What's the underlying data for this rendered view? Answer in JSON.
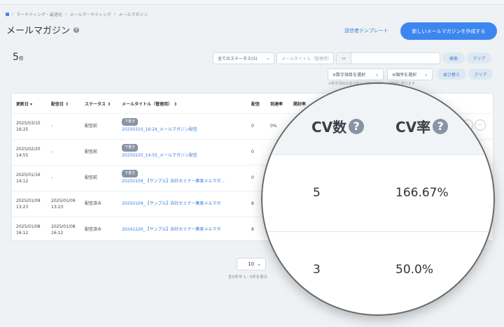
{
  "breadcrumb": [
    "マーケティング・最適化",
    "メールマーケティング",
    "メールマガジン"
  ],
  "page_title": "メールマガジン",
  "header": {
    "sender_template_link": "送信者テンプレート",
    "create_button": "新しいメールマガジンを作成する"
  },
  "count": {
    "value": "5",
    "unit": "件"
  },
  "filters": {
    "status_select": "全てのステータス(5)",
    "title_placeholder": "メールタイトル（管理用）",
    "date_value": "",
    "search_button": "検索",
    "clear_button": "クリア",
    "numeric_select": "※数字項目を選択",
    "order_select": "※順序を選択",
    "sort_button": "並び替え",
    "sort_clear_button": "クリア",
    "note": "※数字項目の並び替えは表示されている範囲に限ります"
  },
  "table": {
    "headers": [
      "更新日",
      "配信日",
      "ステータス",
      "メールタイトル（管理用）",
      "配信",
      "到達率",
      "開封率"
    ],
    "rows": [
      {
        "updated": "2025/03/10\n16:25",
        "sent": "-",
        "status": "配信前",
        "badge": "下書き",
        "title": "20250310_16:24_メールマガジン配信",
        "delivered": "0",
        "reach": "0%"
      },
      {
        "updated": "2025/02/20\n14:55",
        "sent": "-",
        "status": "配信前",
        "badge": "下書き",
        "title": "20250220_14:55_メールマガジン配信",
        "delivered": "0",
        "reach": ""
      },
      {
        "updated": "2025/01/16\n14:12",
        "sent": "-",
        "status": "配信前",
        "badge": "下書き",
        "title": "20250109_【サンプル】自社セミナー集客メルマガ...",
        "delivered": "0",
        "reach": ""
      },
      {
        "updated": "2025/01/09\n13:23",
        "sent": "2025/01/09\n13:23",
        "status": "配信済み",
        "badge": "",
        "title": "20250109_【サンプル】自社セミナー集客メルマガ",
        "delivered": "8",
        "reach": ""
      },
      {
        "updated": "2025/01/08\n16:12",
        "sent": "2025/01/08\n16:12",
        "status": "配信済み",
        "badge": "",
        "title": "20241226_【サンプル】自社セミナー集客メルマガ",
        "delivered": "8",
        "reach": ""
      }
    ]
  },
  "pagination": {
    "per_page": "10",
    "info": "全5件中 1 - 5件を表示"
  },
  "magnifier": {
    "headers": [
      "CV数",
      "CV率"
    ],
    "rows": [
      [
        "5",
        "166.67%"
      ],
      [
        "3",
        "50.0%"
      ]
    ]
  },
  "colors": {
    "accent": "#3d86f0",
    "link": "#3b7ddd",
    "badge": "#8a93a5"
  }
}
